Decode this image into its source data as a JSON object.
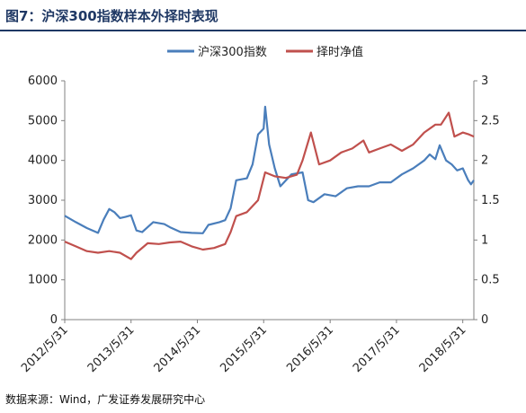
{
  "title": "图7：沪深300指数样本外择时表现",
  "source": "数据来源：Wind，广发证券发展研究中心",
  "colors": {
    "series1": "#4a7ebb",
    "series2": "#c0504d",
    "title": "#1f3864",
    "axis": "#808080"
  },
  "chart_data": {
    "type": "line",
    "grid": false,
    "legend_position": "top",
    "x_tick_labels": [
      "2012/5/31",
      "2013/5/31",
      "2014/5/31",
      "2015/5/31",
      "2016/5/31",
      "2017/5/31",
      "2018/5/31"
    ],
    "x_range": [
      "2012/5/31",
      "2018/7/31"
    ],
    "y_left": {
      "range": [
        0,
        6000
      ],
      "ticks": [
        "0",
        "1000",
        "2000",
        "3000",
        "4000",
        "5000",
        "6000"
      ]
    },
    "y_right": {
      "range": [
        0,
        3
      ],
      "ticks": [
        "0",
        "0.5",
        "1",
        "1.5",
        "2",
        "2.5",
        "3"
      ]
    },
    "series": [
      {
        "name": "沪深300指数",
        "axis": "left",
        "points": [
          [
            "2012/5/31",
            2610
          ],
          [
            "2012/7/31",
            2450
          ],
          [
            "2012/9/30",
            2300
          ],
          [
            "2012/11/30",
            2180
          ],
          [
            "2012/12/31",
            2510
          ],
          [
            "2013/1/31",
            2780
          ],
          [
            "2013/2/28",
            2700
          ],
          [
            "2013/3/31",
            2550
          ],
          [
            "2013/4/30",
            2580
          ],
          [
            "2013/5/31",
            2620
          ],
          [
            "2013/6/30",
            2240
          ],
          [
            "2013/7/31",
            2200
          ],
          [
            "2013/9/30",
            2450
          ],
          [
            "2013/11/30",
            2400
          ],
          [
            "2013/12/31",
            2320
          ],
          [
            "2014/2/28",
            2200
          ],
          [
            "2014/4/30",
            2180
          ],
          [
            "2014/6/30",
            2170
          ],
          [
            "2014/7/31",
            2380
          ],
          [
            "2014/9/30",
            2450
          ],
          [
            "2014/10/31",
            2500
          ],
          [
            "2014/11/30",
            2800
          ],
          [
            "2014/12/31",
            3500
          ],
          [
            "2015/2/28",
            3550
          ],
          [
            "2015/3/31",
            3900
          ],
          [
            "2015/4/30",
            4650
          ],
          [
            "2015/5/31",
            4800
          ],
          [
            "2015/6/8",
            5350
          ],
          [
            "2015/6/30",
            4400
          ],
          [
            "2015/7/31",
            3800
          ],
          [
            "2015/8/31",
            3350
          ],
          [
            "2015/10/31",
            3650
          ],
          [
            "2015/12/31",
            3700
          ],
          [
            "2016/1/31",
            3000
          ],
          [
            "2016/2/29",
            2950
          ],
          [
            "2016/4/30",
            3150
          ],
          [
            "2016/6/30",
            3100
          ],
          [
            "2016/8/31",
            3300
          ],
          [
            "2016/10/31",
            3350
          ],
          [
            "2016/12/31",
            3350
          ],
          [
            "2017/2/28",
            3450
          ],
          [
            "2017/4/30",
            3450
          ],
          [
            "2017/6/30",
            3650
          ],
          [
            "2017/8/31",
            3800
          ],
          [
            "2017/10/31",
            4000
          ],
          [
            "2017/11/30",
            4150
          ],
          [
            "2017/12/31",
            4030
          ],
          [
            "2018/1/24",
            4380
          ],
          [
            "2018/2/28",
            4000
          ],
          [
            "2018/3/31",
            3900
          ],
          [
            "2018/4/30",
            3750
          ],
          [
            "2018/5/31",
            3800
          ],
          [
            "2018/6/30",
            3500
          ],
          [
            "2018/7/15",
            3400
          ],
          [
            "2018/7/31",
            3500
          ]
        ]
      },
      {
        "name": "择时净值",
        "axis": "right",
        "points": [
          [
            "2012/5/31",
            0.98
          ],
          [
            "2012/7/31",
            0.92
          ],
          [
            "2012/9/30",
            0.86
          ],
          [
            "2012/11/30",
            0.84
          ],
          [
            "2013/1/31",
            0.86
          ],
          [
            "2013/3/31",
            0.84
          ],
          [
            "2013/5/31",
            0.76
          ],
          [
            "2013/6/30",
            0.84
          ],
          [
            "2013/8/31",
            0.96
          ],
          [
            "2013/10/31",
            0.95
          ],
          [
            "2013/12/31",
            0.97
          ],
          [
            "2014/2/28",
            0.98
          ],
          [
            "2014/4/30",
            0.92
          ],
          [
            "2014/6/30",
            0.88
          ],
          [
            "2014/8/31",
            0.9
          ],
          [
            "2014/10/31",
            0.95
          ],
          [
            "2014/11/30",
            1.1
          ],
          [
            "2014/12/31",
            1.3
          ],
          [
            "2015/2/28",
            1.35
          ],
          [
            "2015/4/30",
            1.5
          ],
          [
            "2015/6/8",
            1.85
          ],
          [
            "2015/7/31",
            1.8
          ],
          [
            "2015/9/30",
            1.78
          ],
          [
            "2015/11/30",
            1.82
          ],
          [
            "2015/12/31",
            2.0
          ],
          [
            "2016/2/15",
            2.35
          ],
          [
            "2016/3/31",
            1.95
          ],
          [
            "2016/5/31",
            2.0
          ],
          [
            "2016/7/31",
            2.1
          ],
          [
            "2016/9/30",
            2.15
          ],
          [
            "2016/11/30",
            2.25
          ],
          [
            "2016/12/31",
            2.1
          ],
          [
            "2017/2/28",
            2.15
          ],
          [
            "2017/4/30",
            2.2
          ],
          [
            "2017/6/30",
            2.12
          ],
          [
            "2017/8/31",
            2.2
          ],
          [
            "2017/10/31",
            2.35
          ],
          [
            "2017/12/31",
            2.45
          ],
          [
            "2018/1/31",
            2.45
          ],
          [
            "2018/3/15",
            2.6
          ],
          [
            "2018/4/15",
            2.3
          ],
          [
            "2018/5/31",
            2.35
          ],
          [
            "2018/6/30",
            2.33
          ],
          [
            "2018/7/31",
            2.3
          ]
        ]
      }
    ]
  }
}
